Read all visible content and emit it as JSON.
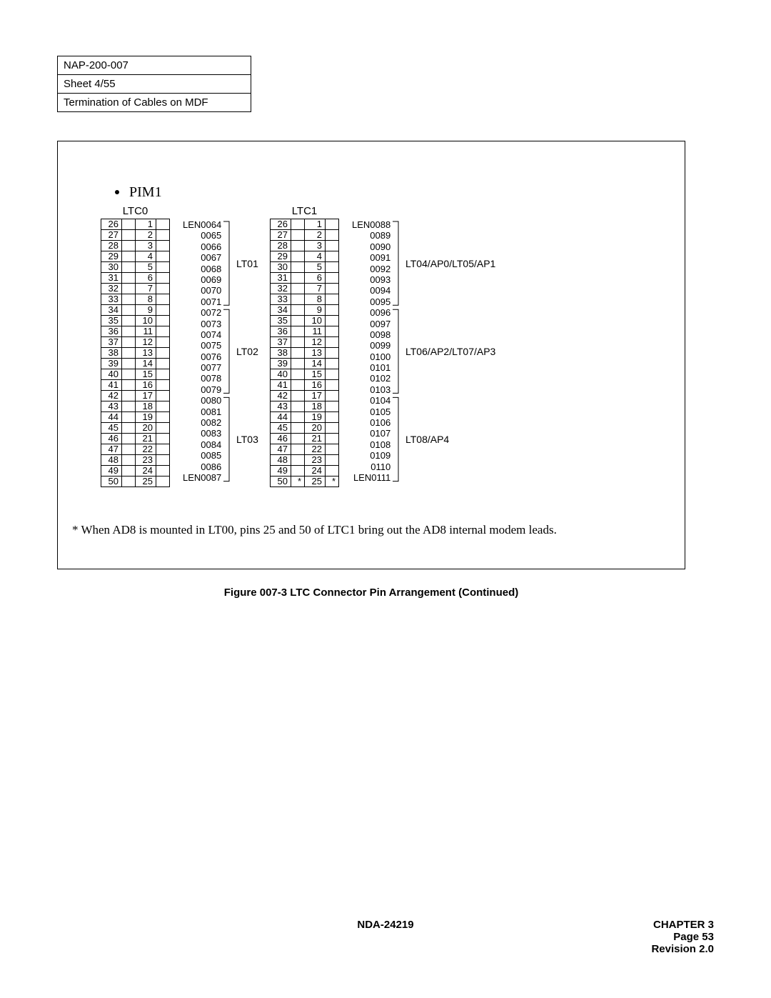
{
  "header": {
    "doc_id": "NAP-200-007",
    "sheet": "Sheet 4/55",
    "title": "Termination of Cables on MDF"
  },
  "figure": {
    "section_title": "PIM1",
    "tables": [
      {
        "title": "LTC0",
        "left_start": 26,
        "right_start": 1,
        "row_count": 25,
        "star_last": false,
        "len_prefix_first": "LEN0064",
        "len_prefix_last": "LEN0087",
        "len_start": 64,
        "groups": [
          {
            "label": "LT01",
            "top_row": 0,
            "rows": 8
          },
          {
            "label": "LT02",
            "top_row": 8,
            "rows": 8
          },
          {
            "label": "LT03",
            "top_row": 16,
            "rows": 8
          }
        ]
      },
      {
        "title": "LTC1",
        "left_start": 26,
        "right_start": 1,
        "row_count": 25,
        "star_last": true,
        "len_prefix_first": "LEN0088",
        "len_prefix_last": "LEN0111",
        "len_start": 88,
        "groups": [
          {
            "label": "LT04/AP0/LT05/AP1",
            "top_row": 0,
            "rows": 8
          },
          {
            "label": "LT06/AP2/LT07/AP3",
            "top_row": 8,
            "rows": 8
          },
          {
            "label": "LT08/AP4",
            "top_row": 16,
            "rows": 8
          }
        ]
      }
    ],
    "footnote": "* When AD8 is mounted in LT00, pins 25 and 50 of LTC1 bring out the AD8 internal modem leads.",
    "caption": "Figure 007-3  LTC Connector Pin Arrangement (Continued)"
  },
  "footer": {
    "center": "NDA-24219",
    "chapter": "CHAPTER 3",
    "page": "Page 53",
    "revision": "Revision 2.0"
  },
  "style": {
    "row_height": 15.4,
    "bracket_stroke": "#000000",
    "bracket_width": 1
  }
}
